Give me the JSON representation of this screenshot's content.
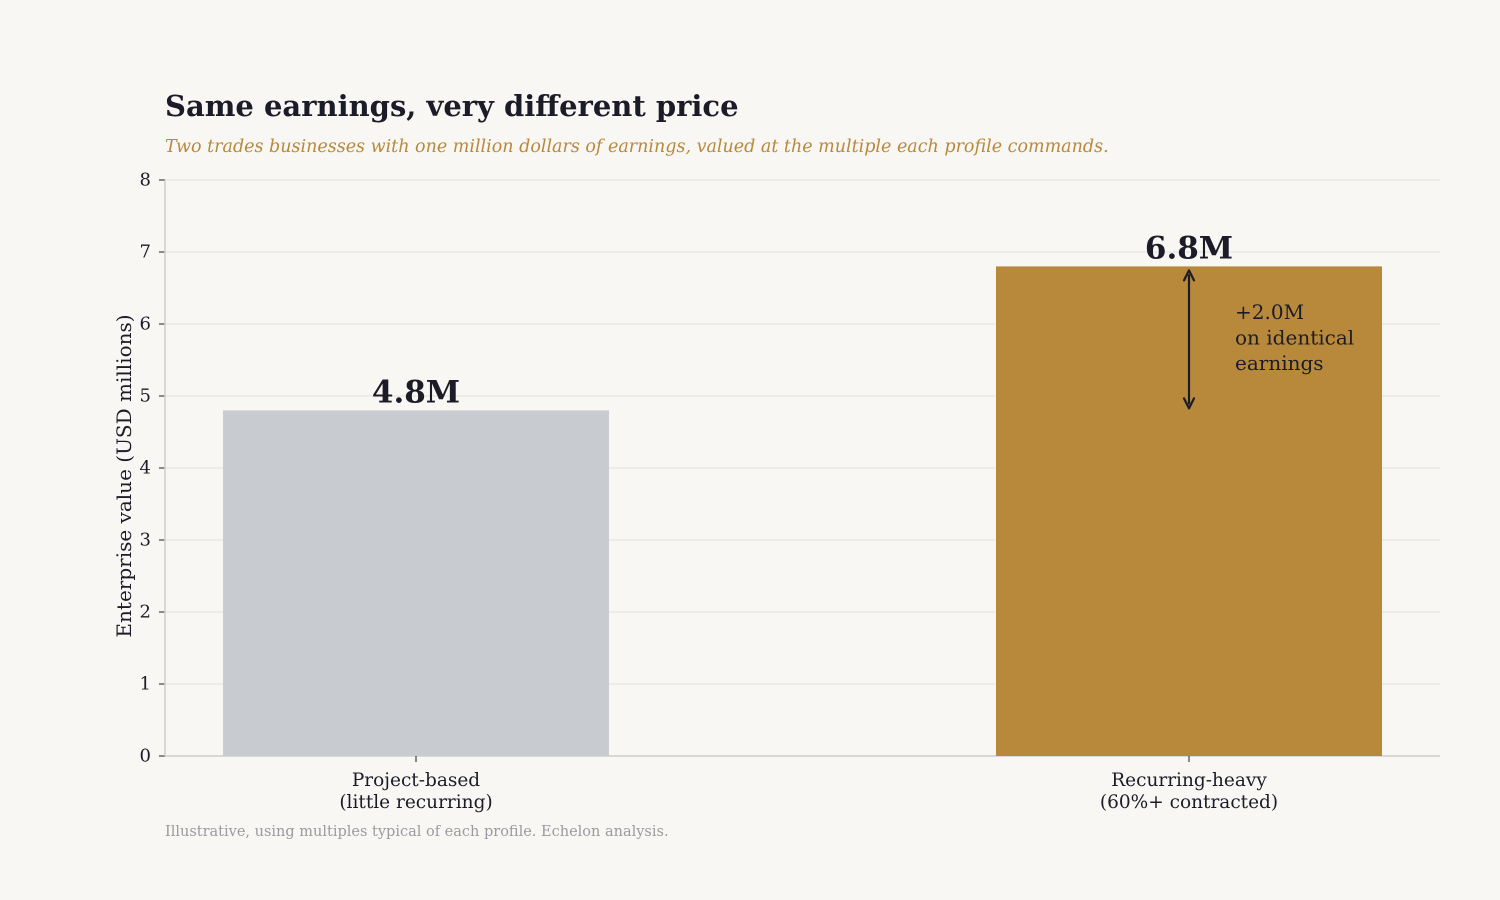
{
  "chart_data": {
    "type": "bar",
    "title": "Same earnings, very different price",
    "subtitle": "Two trades businesses with one million dollars of earnings, valued at the multiple each profile commands.",
    "footnote": "Illustrative, using multiples typical of each profile. Echelon analysis.",
    "ylabel": "Enterprise value (USD millions)",
    "xlabel": "",
    "ylim": [
      0,
      8
    ],
    "yticks": [
      "0",
      "1",
      "2",
      "3",
      "4",
      "5",
      "6",
      "7",
      "8"
    ],
    "grid": true,
    "categories": [
      [
        "Project-based",
        "(little recurring)"
      ],
      [
        "Recurring-heavy",
        "(60%+ contracted)"
      ]
    ],
    "values": [
      4.8,
      6.8
    ],
    "value_labels": [
      "4.8M",
      "6.8M"
    ],
    "bar_colors": [
      "#c8cbcf",
      "#b8893b"
    ],
    "annotation": {
      "lines": [
        "+2.0M",
        "on identical",
        "earnings"
      ],
      "from": 4.8,
      "to": 6.8,
      "series_index": 1
    }
  },
  "colors": {
    "background": "#f8f7f4",
    "text": "#1c1c28",
    "accent": "#b8893b",
    "gridline": "#e2e1dd",
    "axis": "#cfcecb",
    "footnote": "#9a9b9f"
  }
}
